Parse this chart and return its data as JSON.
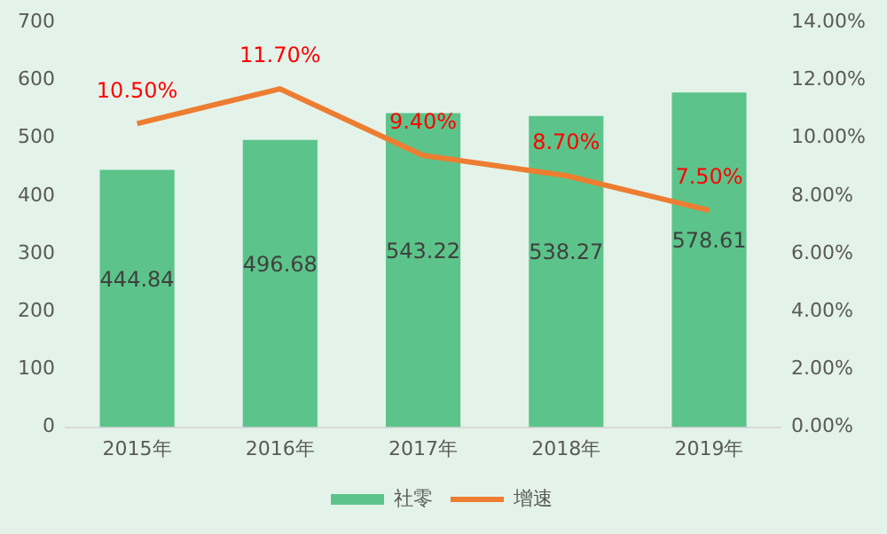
{
  "chart_data": {
    "type": "bar",
    "categories": [
      "2015年",
      "2016年",
      "2017年",
      "2018年",
      "2019年"
    ],
    "series": [
      {
        "name": "社零",
        "color": "#5cc48a",
        "values": [
          444.84,
          496.68,
          543.22,
          538.27,
          578.61
        ],
        "value_labels": [
          "444.84",
          "496.68",
          "543.22",
          "538.27",
          "578.61"
        ]
      },
      {
        "name": "增速",
        "type": "line",
        "axis": "y2",
        "color": "#ed7d31",
        "values": [
          10.5,
          11.7,
          9.4,
          8.7,
          7.5
        ],
        "value_labels": [
          "10.50%",
          "11.70%",
          "9.40%",
          "8.70%",
          "7.50%"
        ]
      }
    ],
    "ylim": [
      0,
      700
    ],
    "yticks": [
      0,
      100,
      200,
      300,
      400,
      500,
      600,
      700
    ],
    "y2lim": [
      0,
      14
    ],
    "y2ticks": [
      {
        "value": 0,
        "label": "0.00%"
      },
      {
        "value": 2,
        "label": "2.00%"
      },
      {
        "value": 4,
        "label": "4.00%"
      },
      {
        "value": 6,
        "label": "6.00%"
      },
      {
        "value": 8,
        "label": "8.00%"
      },
      {
        "value": 10,
        "label": "10.00%"
      },
      {
        "value": 12,
        "label": "12.00%"
      },
      {
        "value": 14,
        "label": "14.00%"
      }
    ],
    "grid": false,
    "legend": "bottom",
    "marker": "none",
    "line_style": "solid"
  }
}
